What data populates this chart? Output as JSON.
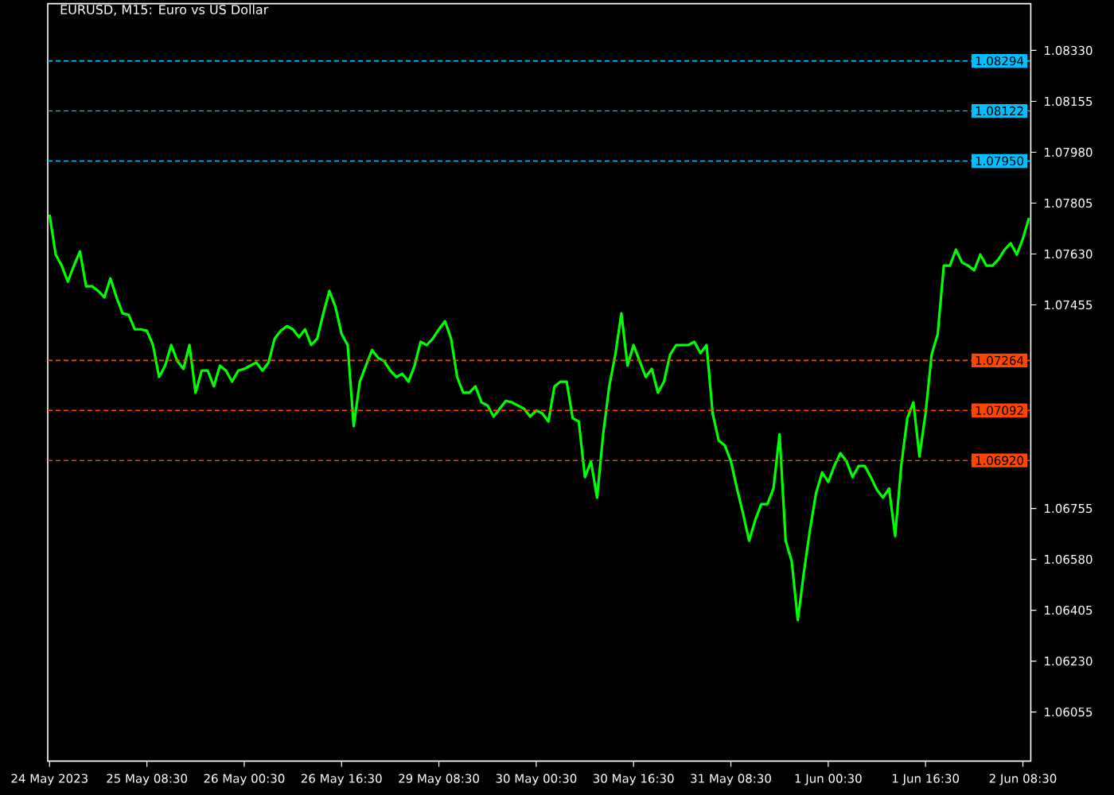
{
  "chart_data": {
    "type": "line",
    "title": "EURUSD, M15: Euro vs US Dollar",
    "categories": [
      "24 May 2023",
      null,
      null,
      null,
      null,
      null,
      null,
      null,
      null,
      null,
      null,
      null,
      null,
      null,
      null,
      null,
      "25 May 08:30",
      null,
      null,
      null,
      null,
      null,
      null,
      null,
      null,
      null,
      null,
      null,
      null,
      null,
      null,
      null,
      "26 May 00:30",
      null,
      null,
      null,
      null,
      null,
      null,
      null,
      null,
      null,
      null,
      null,
      null,
      null,
      null,
      null,
      "26 May 16:30",
      null,
      null,
      null,
      null,
      null,
      null,
      null,
      null,
      null,
      null,
      null,
      null,
      null,
      null,
      null,
      "29 May 08:30",
      null,
      null,
      null,
      null,
      null,
      null,
      null,
      null,
      null,
      null,
      null,
      null,
      null,
      null,
      null,
      "30 May 00:30",
      null,
      null,
      null,
      null,
      null,
      null,
      null,
      null,
      null,
      null,
      null,
      null,
      null,
      null,
      null,
      "30 May 16:30",
      null,
      null,
      null,
      null,
      null,
      null,
      null,
      null,
      null,
      null,
      null,
      null,
      null,
      null,
      null,
      "31 May 08:30",
      null,
      null,
      null,
      null,
      null,
      null,
      null,
      null,
      null,
      null,
      null,
      null,
      null,
      null,
      null,
      "1 Jun 00:30",
      null,
      null,
      null,
      null,
      null,
      null,
      null,
      null,
      null,
      null,
      null,
      null,
      null,
      null,
      null,
      "1 Jun 16:30",
      null,
      null,
      null,
      null,
      null,
      null,
      null,
      null,
      null,
      null,
      null,
      null,
      null,
      null,
      null,
      "2 Jun 08:30",
      null
    ],
    "series": [
      {
        "color": "#00ff00",
        "values": [
          1.07765,
          1.07628,
          1.0759,
          1.07535,
          1.0759,
          1.07639,
          1.07519,
          1.07519,
          1.07503,
          1.07481,
          1.07546,
          1.07481,
          1.07426,
          1.07421,
          1.07371,
          1.07371,
          1.07366,
          1.07317,
          1.07207,
          1.07246,
          1.07317,
          1.07262,
          1.07235,
          1.07317,
          1.07153,
          1.07229,
          1.07229,
          1.07175,
          1.07246,
          1.07229,
          1.07191,
          1.07229,
          1.07235,
          1.07246,
          1.07257,
          1.07229,
          1.07257,
          1.07339,
          1.07366,
          1.07382,
          1.07371,
          1.07344,
          1.07371,
          1.07317,
          1.07339,
          1.07426,
          1.07503,
          1.07448,
          1.07355,
          1.07317,
          1.07038,
          1.07191,
          1.07246,
          1.073,
          1.07273,
          1.07262,
          1.07229,
          1.07207,
          1.07218,
          1.07191,
          1.07246,
          1.07328,
          1.07317,
          1.07339,
          1.07371,
          1.07399,
          1.07339,
          1.07207,
          1.07153,
          1.07153,
          1.07175,
          1.0712,
          1.07109,
          1.07071,
          1.07098,
          1.07125,
          1.0712,
          1.07109,
          1.07098,
          1.07071,
          1.07092,
          1.07082,
          1.07054,
          1.07175,
          1.07191,
          1.07191,
          1.07065,
          1.07054,
          1.06863,
          1.06917,
          1.06792,
          1.0701,
          1.07175,
          1.07284,
          1.07426,
          1.07246,
          1.07317,
          1.07262,
          1.07207,
          1.07235,
          1.07153,
          1.07191,
          1.07284,
          1.07317,
          1.07317,
          1.07317,
          1.07328,
          1.07289,
          1.07317,
          1.07082,
          1.06988,
          1.06972,
          1.06917,
          1.06824,
          1.06737,
          1.06644,
          1.06715,
          1.0677,
          1.0677,
          1.06824,
          1.0701,
          1.06644,
          1.06573,
          1.06371,
          1.06535,
          1.06682,
          1.06808,
          1.06879,
          1.06846,
          1.06901,
          1.06945,
          1.06917,
          1.06863,
          1.06901,
          1.06901,
          1.06863,
          1.06819,
          1.06792,
          1.06824,
          1.0666,
          1.06901,
          1.07065,
          1.0712,
          1.06934,
          1.07082,
          1.07284,
          1.07355,
          1.0759,
          1.0759,
          1.07645,
          1.07601,
          1.0759,
          1.07574,
          1.07628,
          1.0759,
          1.0759,
          1.07612,
          1.07645,
          1.07667,
          1.07628,
          1.07683,
          1.07754
        ]
      }
    ],
    "ylim": [
      1.05886,
      1.08491
    ],
    "yticks": [
      {
        "value": 1.06055,
        "label": "1.06055"
      },
      {
        "value": 1.0623,
        "label": "1.06230"
      },
      {
        "value": 1.06405,
        "label": "1.06405"
      },
      {
        "value": 1.0658,
        "label": "1.06580"
      },
      {
        "value": 1.06755,
        "label": "1.06755"
      },
      {
        "value": 1.07455,
        "label": "1.07455"
      },
      {
        "value": 1.0763,
        "label": "1.07630"
      },
      {
        "value": 1.07805,
        "label": "1.07805"
      },
      {
        "value": 1.0798,
        "label": "1.07980"
      },
      {
        "value": 1.08155,
        "label": "1.08155"
      },
      {
        "value": 1.0833,
        "label": "1.08330"
      }
    ],
    "ref_lines": [
      {
        "axis": "y",
        "value": 1.08294,
        "label": "1.08294",
        "color": "#00bfff",
        "line_style": "dashed"
      },
      {
        "axis": "y",
        "value": 1.08122,
        "label": "1.08122",
        "color": "#00bfff",
        "line_style": "dashed"
      },
      {
        "axis": "y",
        "value": 1.0795,
        "label": "1.07950",
        "color": "#00bfff",
        "line_style": "dashed"
      },
      {
        "axis": "y",
        "value": 1.07264,
        "label": "1.07264",
        "color": "#ff4500",
        "line_style": "dashed"
      },
      {
        "axis": "y",
        "value": 1.07092,
        "label": "1.07092",
        "color": "#ff4500",
        "line_style": "dashed"
      },
      {
        "axis": "y",
        "value": 1.0692,
        "label": "1.06920",
        "color": "#ff4500",
        "line_style": "dashed"
      }
    ],
    "marker": "none",
    "line_style": "solid"
  }
}
